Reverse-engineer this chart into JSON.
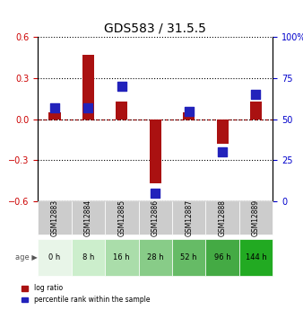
{
  "title": "GDS583 / 31.5.5",
  "samples": [
    "GSM12883",
    "GSM12884",
    "GSM12885",
    "GSM12886",
    "GSM12887",
    "GSM12888",
    "GSM12889"
  ],
  "ages": [
    "0 h",
    "8 h",
    "16 h",
    "28 h",
    "52 h",
    "96 h",
    "144 h"
  ],
  "log_ratios": [
    0.05,
    0.47,
    0.13,
    -0.47,
    0.05,
    -0.18,
    0.13
  ],
  "percentile_ranks": [
    57,
    57,
    70,
    5,
    55,
    30,
    65
  ],
  "ylim_left": [
    -0.6,
    0.6
  ],
  "ylim_right": [
    0,
    100
  ],
  "yticks_left": [
    -0.6,
    -0.3,
    0.0,
    0.3,
    0.6
  ],
  "yticks_right": [
    0,
    25,
    50,
    75,
    100
  ],
  "bar_color": "#aa1111",
  "dot_color": "#2222bb",
  "bar_width": 0.35,
  "dot_size": 60,
  "age_colors": [
    "#e8f5e8",
    "#cceecc",
    "#aaddaa",
    "#88cc88",
    "#66bb66",
    "#44aa44",
    "#22aa22"
  ],
  "sample_bg": "#cccccc",
  "legend_log_ratio": "log ratio",
  "legend_percentile": "percentile rank within the sample"
}
